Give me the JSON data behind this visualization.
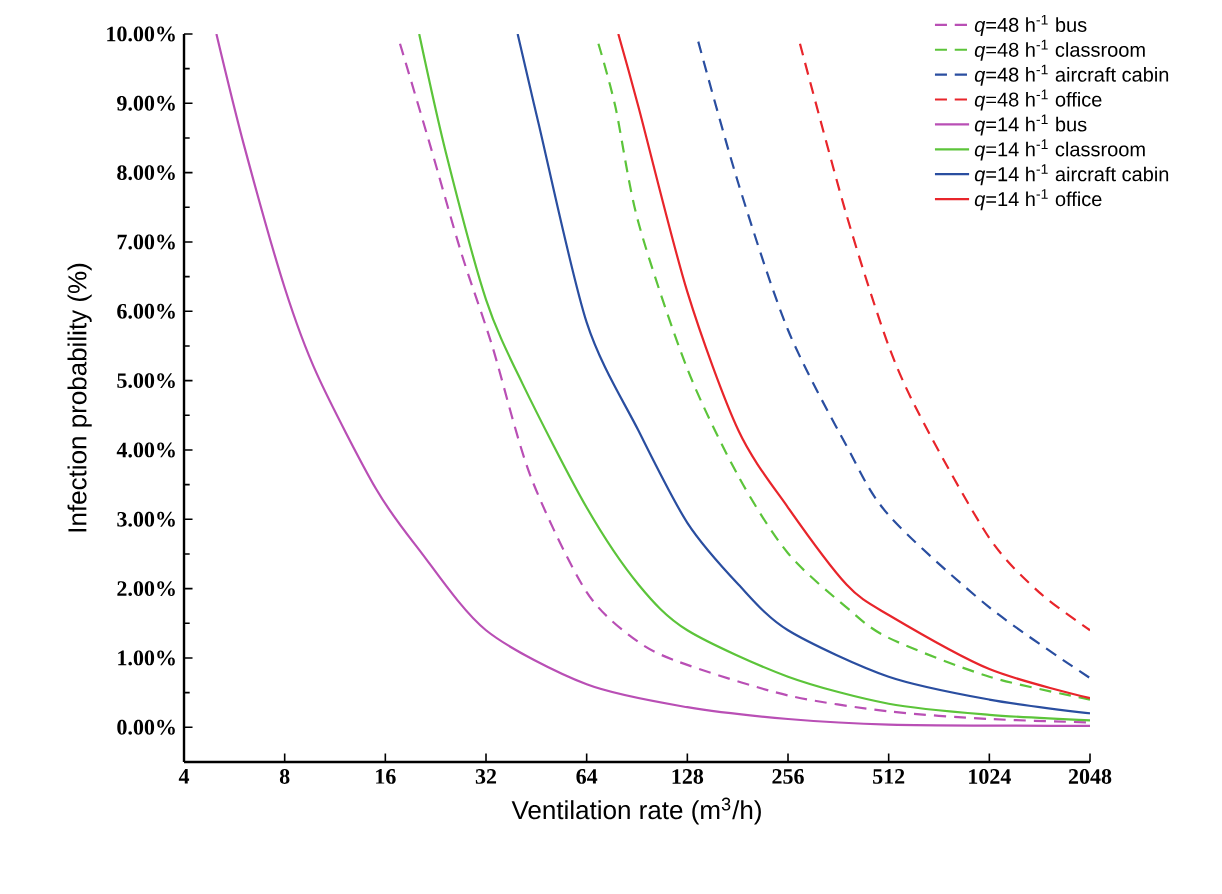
{
  "chart_data": {
    "type": "line",
    "xlabel": "Ventilation rate (m$^{3}$/h)",
    "ylabel": "Infection probability (%)",
    "log": "x",
    "legend": "top right",
    "grid": false,
    "xlim": [
      4,
      2048
    ],
    "ylim": [
      -0.5,
      10
    ],
    "xticks": [
      4,
      8,
      16,
      32,
      64,
      128,
      256,
      512,
      1024,
      2048
    ],
    "yticks": [
      {
        "value": 0,
        "label": "0.00%"
      },
      {
        "value": 1,
        "label": "1.00%"
      },
      {
        "value": 2,
        "label": "2.00%"
      },
      {
        "value": 3,
        "label": "3.00%"
      },
      {
        "value": 4,
        "label": "4.00%"
      },
      {
        "value": 5,
        "label": "5.00%"
      },
      {
        "value": 6,
        "label": "6.00%"
      },
      {
        "value": 7,
        "label": "7.00%"
      },
      {
        "value": 8,
        "label": "8.00%"
      },
      {
        "value": 9,
        "label": "9.00%"
      },
      {
        "value": 10,
        "label": "10.00%"
      }
    ],
    "series": [
      {
        "name": "*q*=48 h$^{-1}$ bus",
        "color": "#b94fb5",
        "line_style": "dashed",
        "x": [
          17.7,
          21.8,
          27.0,
          33.4,
          43.5,
          64,
          91.4,
          128,
          256,
          512,
          1024,
          2048
        ],
        "values": [
          9.86,
          8.39,
          6.84,
          5.5,
          3.62,
          1.95,
          1.23,
          0.9,
          0.46,
          0.23,
          0.12,
          0.07
        ]
      },
      {
        "name": "*q*=48 h$^{-1}$ classroom",
        "color": "#5cc43a",
        "line_style": "dashed",
        "x": [
          69.4,
          78.0,
          91.4,
          128,
          182,
          256,
          383,
          512,
          1024,
          2048
        ],
        "values": [
          9.86,
          8.95,
          7.28,
          5.17,
          3.62,
          2.51,
          1.73,
          1.29,
          0.73,
          0.4
        ]
      },
      {
        "name": "*q*=48 h$^{-1}$ aircraft cabin",
        "color": "#2a4ea0",
        "line_style": "dashed",
        "x": [
          138,
          182,
          256,
          383,
          512,
          1024,
          2048
        ],
        "values": [
          9.89,
          7.84,
          5.73,
          4.06,
          3.06,
          1.73,
          0.71
        ]
      },
      {
        "name": "*q*=48 h$^{-1}$ office",
        "color": "#e8252b",
        "line_style": "dashed",
        "x": [
          278,
          383,
          512,
          650,
          1024,
          1441,
          2048
        ],
        "values": [
          9.86,
          7.39,
          5.5,
          4.4,
          2.73,
          1.95,
          1.4
        ]
      },
      {
        "name": "*q*=14 h$^{-1}$ bus",
        "color": "#b94fb5",
        "line_style": "solid",
        "x": [
          5.0,
          6.05,
          8,
          10,
          15,
          20.2,
          32,
          64,
          128,
          256,
          512,
          2048
        ],
        "values": [
          10.0,
          8.39,
          6.34,
          5.09,
          3.44,
          2.56,
          1.4,
          0.62,
          0.29,
          0.12,
          0.04,
          0.02
        ]
      },
      {
        "name": "*q*=14 h$^{-1}$ classroom",
        "color": "#5cc43a",
        "line_style": "solid",
        "x": [
          20.2,
          24.3,
          32,
          41.2,
          64,
          91.4,
          128,
          256,
          512,
          1024,
          2048
        ],
        "values": [
          10.0,
          8.28,
          6.17,
          4.95,
          3.17,
          2.06,
          1.4,
          0.73,
          0.34,
          0.18,
          0.1
        ]
      },
      {
        "name": "*q*=14 h$^{-1}$ aircraft cabin",
        "color": "#2a4ea0",
        "line_style": "solid",
        "x": [
          39.8,
          45.9,
          64,
          91.4,
          128,
          182,
          256,
          512,
          1024,
          2048
        ],
        "values": [
          10.0,
          8.72,
          5.84,
          4.28,
          2.95,
          2.06,
          1.4,
          0.73,
          0.4,
          0.2
        ]
      },
      {
        "name": "*q*=14 h$^{-1}$ office",
        "color": "#e8252b",
        "line_style": "solid",
        "x": [
          79.6,
          91.4,
          128,
          182,
          256,
          383,
          512,
          1024,
          2048
        ],
        "values": [
          10.0,
          8.95,
          6.28,
          4.28,
          3.17,
          2.06,
          1.62,
          0.84,
          0.42
        ]
      }
    ]
  }
}
